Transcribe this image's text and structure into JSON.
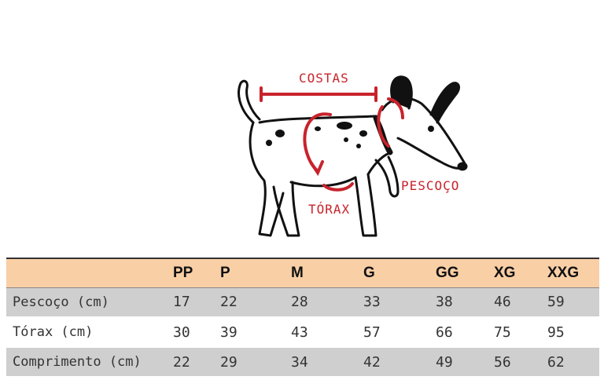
{
  "illustration": {
    "labels": {
      "back": "COSTAS",
      "neck": "PESCOÇO",
      "chest": "TÓRAX"
    }
  },
  "table": {
    "sizes": [
      "PP",
      "P",
      "M",
      "G",
      "GG",
      "XG",
      "XXG"
    ],
    "rows": [
      {
        "label": "Pescoço (cm)",
        "values": [
          "17",
          "22",
          "28",
          "33",
          "38",
          "46",
          "59"
        ]
      },
      {
        "label": "Tórax (cm)",
        "values": [
          "30",
          "39",
          "43",
          "57",
          "66",
          "75",
          "95"
        ]
      },
      {
        "label": "Comprimento (cm)",
        "values": [
          "22",
          "29",
          "34",
          "42",
          "49",
          "56",
          "62"
        ]
      }
    ]
  },
  "colors": {
    "header_bg": "#f9cfa6",
    "row_shaded_bg": "#cfcfcf",
    "accent_red": "#c8232c"
  }
}
